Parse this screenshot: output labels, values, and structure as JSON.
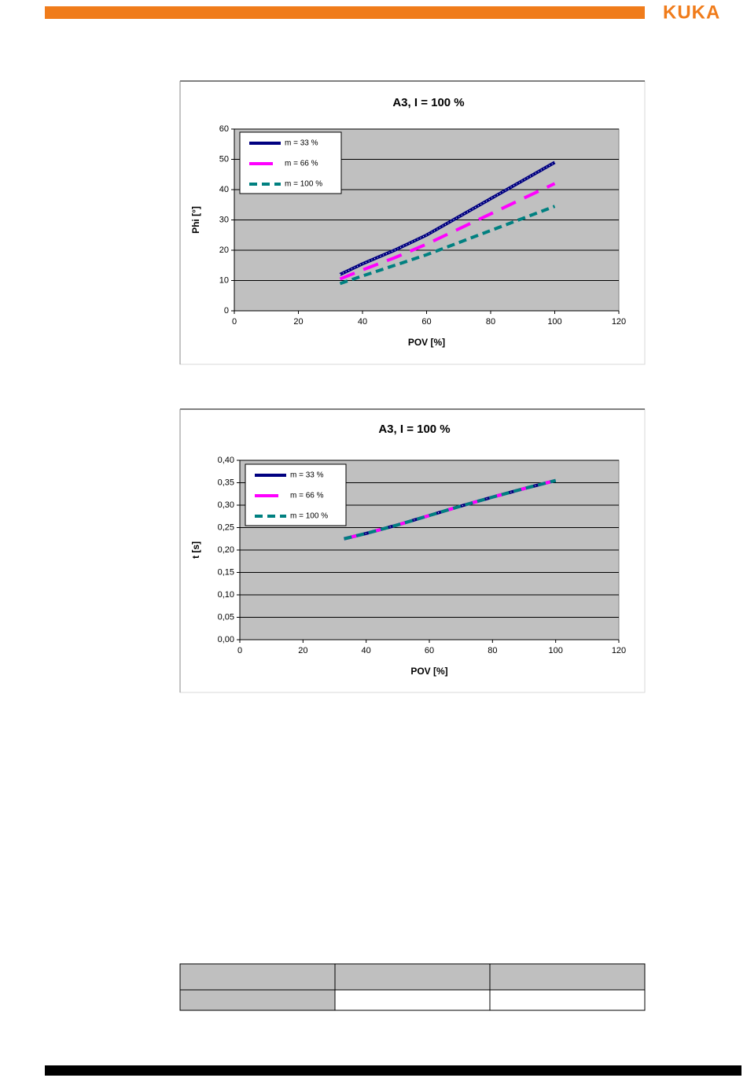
{
  "header": {
    "logo": "KUKA"
  },
  "chart_data": [
    {
      "type": "line",
      "title": "A3,  I = 100 %",
      "x_label": "POV [%]",
      "y_label": "Phi [°]",
      "xlim": [
        0,
        120
      ],
      "xticks": [
        0,
        20,
        40,
        60,
        80,
        100,
        120
      ],
      "ylim": [
        0,
        60
      ],
      "yticks": [
        0,
        10,
        20,
        30,
        40,
        50,
        60
      ],
      "grid": true,
      "x": [
        33,
        40,
        50,
        60,
        70,
        80,
        90,
        100
      ],
      "series": [
        {
          "name": "m = 33 %",
          "color": "#000080",
          "style": "dotted",
          "values": [
            12,
            15.5,
            20,
            25,
            31,
            37,
            43,
            49
          ]
        },
        {
          "name": "m = 66 %",
          "color": "#ff00ff",
          "style": "long-dash",
          "values": [
            10.5,
            13.5,
            17.5,
            22,
            27,
            32,
            37,
            42
          ]
        },
        {
          "name": "m = 100 %",
          "color": "#008080",
          "style": "short-dash",
          "values": [
            9,
            11.5,
            15,
            18.5,
            22.5,
            26.5,
            30.5,
            34.5
          ]
        }
      ]
    },
    {
      "type": "line",
      "title": "A3, I = 100 %",
      "x_label": "POV [%]",
      "y_label": "t [s]",
      "xlim": [
        0,
        120
      ],
      "xticks": [
        0,
        20,
        40,
        60,
        80,
        100,
        120
      ],
      "ylim": [
        0,
        0.4
      ],
      "yticks": [
        {
          "value": 0,
          "label": "0,00"
        },
        {
          "value": 0.05,
          "label": "0,05"
        },
        {
          "value": 0.1,
          "label": "0,10"
        },
        {
          "value": 0.15,
          "label": "0,15"
        },
        {
          "value": 0.2,
          "label": "0,20"
        },
        {
          "value": 0.25,
          "label": "0,25"
        },
        {
          "value": 0.3,
          "label": "0,30"
        },
        {
          "value": 0.35,
          "label": "0,35"
        },
        {
          "value": 0.4,
          "label": "0,40"
        }
      ],
      "grid": true,
      "x": [
        33,
        40,
        50,
        60,
        70,
        80,
        90,
        100
      ],
      "series": [
        {
          "name": "m = 33 %",
          "color": "#000080",
          "style": "dotted",
          "values": [
            0.225,
            0.237,
            0.256,
            0.277,
            0.298,
            0.318,
            0.337,
            0.355
          ]
        },
        {
          "name": "m = 66 %",
          "color": "#ff00ff",
          "style": "long-dash",
          "values": [
            0.225,
            0.237,
            0.256,
            0.277,
            0.298,
            0.318,
            0.337,
            0.355
          ]
        },
        {
          "name": "m = 100 %",
          "color": "#008080",
          "style": "short-dash",
          "values": [
            0.225,
            0.237,
            0.256,
            0.277,
            0.298,
            0.318,
            0.337,
            0.355
          ]
        }
      ]
    }
  ]
}
